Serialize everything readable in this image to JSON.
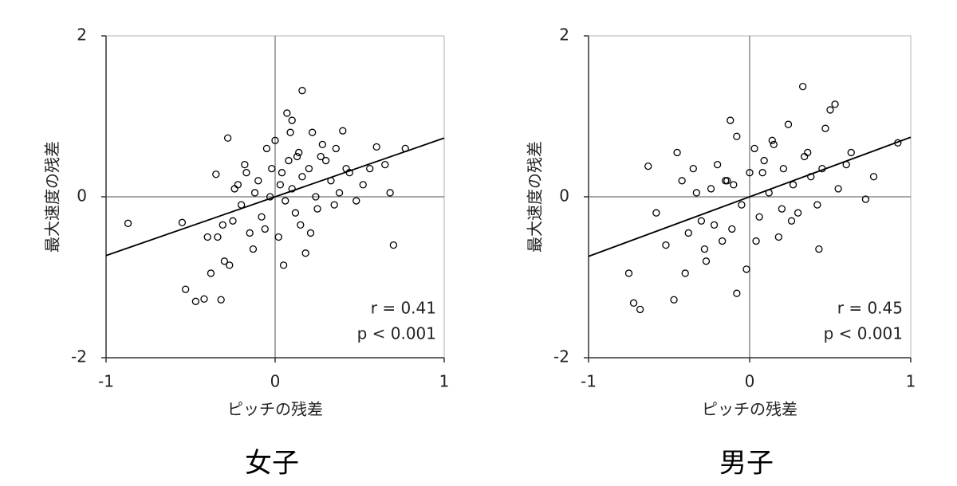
{
  "chart_data": [
    {
      "type": "scatter",
      "title": "女子",
      "xlabel": "ピッチの残差",
      "ylabel": "最大速度の残差",
      "xlim": [
        -1,
        1
      ],
      "ylim": [
        -2,
        2
      ],
      "xticks": [
        -1,
        0,
        1
      ],
      "yticks": [
        -2,
        0,
        2
      ],
      "color": "#000000",
      "x": [
        -0.87,
        -0.55,
        -0.53,
        -0.47,
        -0.42,
        -0.32,
        0.7,
        0.16,
        0.07,
        0.1,
        0.6,
        0.77,
        0.68,
        0.65,
        -0.38,
        -0.35,
        -0.3,
        -0.28,
        -0.25,
        -0.22,
        -0.2,
        -0.18,
        -0.15,
        -0.12,
        -0.1,
        -0.08,
        -0.05,
        -0.03,
        0.0,
        0.02,
        0.04,
        0.06,
        0.08,
        0.1,
        0.12,
        0.14,
        0.16,
        0.18,
        0.2,
        0.22,
        0.25,
        0.28,
        0.3,
        0.33,
        0.36,
        0.4,
        0.44,
        0.48,
        0.52,
        0.56,
        -0.34,
        -0.27,
        -0.24,
        -0.13,
        -0.06,
        0.03,
        0.09,
        0.15,
        0.21,
        0.27,
        0.35,
        0.42,
        -0.4,
        -0.31,
        -0.17,
        -0.02,
        0.05,
        0.13,
        0.24,
        0.38
      ],
      "y": [
        -0.33,
        -0.32,
        -1.15,
        -1.3,
        -1.27,
        -1.28,
        -0.6,
        1.32,
        1.04,
        0.95,
        0.62,
        0.6,
        0.05,
        0.4,
        -0.95,
        0.28,
        -0.8,
        0.73,
        -0.3,
        0.15,
        -0.1,
        0.4,
        -0.45,
        0.05,
        0.2,
        -0.25,
        0.6,
        0.0,
        0.7,
        -0.5,
        0.3,
        -0.05,
        0.45,
        0.1,
        -0.2,
        0.55,
        0.25,
        -0.7,
        0.35,
        0.8,
        -0.15,
        0.65,
        0.45,
        0.2,
        0.6,
        0.82,
        0.3,
        -0.05,
        0.15,
        0.35,
        -0.5,
        -0.85,
        0.1,
        -0.65,
        -0.4,
        0.15,
        0.8,
        -0.35,
        -0.45,
        0.5,
        -0.1,
        0.35,
        -0.5,
        -0.35,
        0.3,
        0.35,
        -0.85,
        0.5,
        0.0,
        0.05
      ],
      "fit_line": {
        "x": [
          -1,
          1
        ],
        "y": [
          -0.73,
          0.73
        ]
      },
      "annotations": [
        "r = 0.41",
        "p < 0.001"
      ]
    },
    {
      "type": "scatter",
      "title": "男子",
      "xlabel": "ピッチの残差",
      "ylabel": "最大速度の残差",
      "xlim": [
        -1,
        1
      ],
      "ylim": [
        -2,
        2
      ],
      "xticks": [
        -1,
        0,
        1
      ],
      "yticks": [
        -2,
        0,
        2
      ],
      "color": "#000000",
      "x": [
        -0.75,
        -0.72,
        -0.68,
        -0.63,
        -0.45,
        -0.47,
        -0.12,
        -0.08,
        0.33,
        0.53,
        0.5,
        0.92,
        0.77,
        0.43,
        0.72,
        0.63,
        -0.58,
        -0.52,
        -0.42,
        -0.38,
        -0.35,
        -0.3,
        -0.27,
        -0.24,
        -0.2,
        -0.17,
        -0.14,
        -0.11,
        -0.08,
        -0.05,
        -0.02,
        0.0,
        0.03,
        0.06,
        0.09,
        0.12,
        0.15,
        0.18,
        0.21,
        0.24,
        0.27,
        0.3,
        0.34,
        0.38,
        0.42,
        0.47,
        0.55,
        0.6,
        -0.4,
        -0.33,
        -0.22,
        -0.1,
        0.04,
        0.14,
        0.26,
        0.36,
        -0.28,
        -0.15,
        0.08,
        0.2,
        0.45
      ],
      "y": [
        -0.95,
        -1.32,
        -1.4,
        0.38,
        0.55,
        -1.28,
        0.95,
        -1.2,
        1.37,
        1.15,
        1.08,
        0.67,
        0.25,
        -0.65,
        -0.03,
        0.55,
        -0.2,
        -0.6,
        0.2,
        -0.45,
        0.35,
        -0.3,
        -0.8,
        0.1,
        0.4,
        -0.55,
        0.2,
        -0.4,
        0.75,
        -0.1,
        -0.9,
        0.3,
        0.6,
        -0.25,
        0.45,
        0.05,
        0.65,
        -0.5,
        0.35,
        0.9,
        0.15,
        -0.2,
        0.5,
        0.25,
        -0.1,
        0.85,
        0.1,
        0.4,
        -0.95,
        0.05,
        -0.35,
        0.15,
        -0.55,
        0.7,
        -0.3,
        0.55,
        -0.65,
        0.2,
        0.3,
        -0.15,
        0.35
      ],
      "fit_line": {
        "x": [
          -1,
          1
        ],
        "y": [
          -0.74,
          0.74
        ]
      },
      "annotations": [
        "r = 0.45",
        "p < 0.001"
      ]
    }
  ]
}
